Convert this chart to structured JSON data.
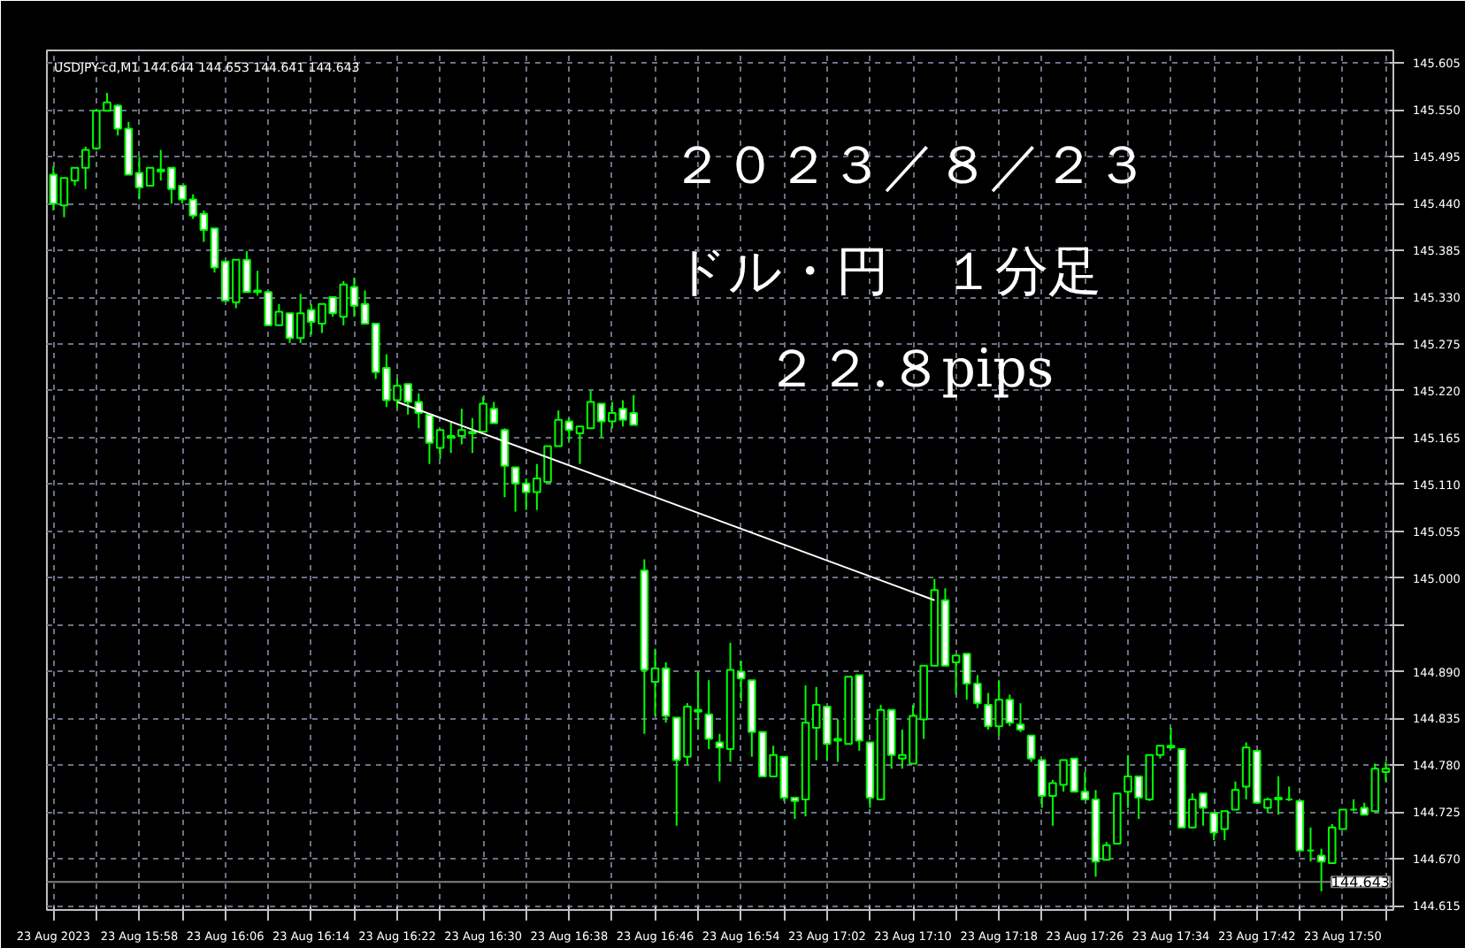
{
  "chart_data": {
    "type": "candlestick",
    "title": "USDJPY-cd,M1  144.644 144.653 144.641 144.643",
    "color": "#00ff00",
    "categories": [
      "23 Aug 2023",
      null,
      null,
      null,
      null,
      null,
      null,
      null,
      "23 Aug 15:58",
      null,
      null,
      null,
      null,
      null,
      null,
      null,
      "23 Aug 16:06",
      null,
      null,
      null,
      null,
      null,
      null,
      null,
      "23 Aug 16:14",
      null,
      null,
      null,
      null,
      null,
      null,
      null,
      "23 Aug 16:22",
      null,
      null,
      null,
      null,
      null,
      null,
      null,
      "23 Aug 16:30",
      null,
      null,
      null,
      null,
      null,
      null,
      null,
      "23 Aug 16:38",
      null,
      null,
      null,
      null,
      null,
      null,
      null,
      "23 Aug 16:46",
      null,
      null,
      null,
      null,
      null,
      null,
      null,
      "23 Aug 16:54",
      null,
      null,
      null,
      null,
      null,
      null,
      null,
      "23 Aug 17:02",
      null,
      null,
      null,
      null,
      null,
      null,
      null,
      "23 Aug 17:10",
      null,
      null,
      null,
      null,
      null,
      null,
      null,
      "23 Aug 17:18",
      null,
      null,
      null,
      null,
      null,
      null,
      null,
      "23 Aug 17:26",
      null,
      null,
      null,
      null,
      null,
      null,
      null,
      "23 Aug 17:34",
      null,
      null,
      null,
      null,
      null,
      null,
      null,
      "23 Aug 17:42",
      null,
      null,
      null,
      null,
      null,
      null,
      null,
      "23 Aug 17:50",
      null,
      null,
      null,
      null
    ],
    "ohlc": [
      [
        145.474,
        145.484,
        145.432,
        145.44
      ],
      [
        145.438,
        145.47,
        145.424,
        145.47
      ],
      [
        145.467,
        145.482,
        145.461,
        145.482
      ],
      [
        145.482,
        145.507,
        145.457,
        145.503
      ],
      [
        145.505,
        145.551,
        145.503,
        145.549
      ],
      [
        145.549,
        145.57,
        145.549,
        145.559
      ],
      [
        145.555,
        145.557,
        145.52,
        145.528
      ],
      [
        145.528,
        145.536,
        145.474,
        145.474
      ],
      [
        145.476,
        145.495,
        145.445,
        145.459
      ],
      [
        145.461,
        145.482,
        145.461,
        145.482
      ],
      [
        145.48,
        145.503,
        145.467,
        145.478
      ],
      [
        145.482,
        145.482,
        145.44,
        145.457
      ],
      [
        145.461,
        145.461,
        145.44,
        145.445
      ],
      [
        145.445,
        145.451,
        145.422,
        145.426
      ],
      [
        145.428,
        145.432,
        145.395,
        145.409
      ],
      [
        145.411,
        145.411,
        145.359,
        145.365
      ],
      [
        145.372,
        145.372,
        145.326,
        145.326
      ],
      [
        145.324,
        145.374,
        145.317,
        145.374
      ],
      [
        145.374,
        145.384,
        145.336,
        145.336
      ],
      [
        145.338,
        145.361,
        145.332,
        145.336
      ],
      [
        145.336,
        145.336,
        145.297,
        145.297
      ],
      [
        145.297,
        145.322,
        145.297,
        145.313
      ],
      [
        145.311,
        145.311,
        145.276,
        145.282
      ],
      [
        145.282,
        145.334,
        145.276,
        145.311
      ],
      [
        145.315,
        145.322,
        145.286,
        145.301
      ],
      [
        145.299,
        145.322,
        145.288,
        145.322
      ],
      [
        145.33,
        145.33,
        145.307,
        145.311
      ],
      [
        145.307,
        145.349,
        145.297,
        145.345
      ],
      [
        145.342,
        145.353,
        145.307,
        145.32
      ],
      [
        145.322,
        145.338,
        145.299,
        145.299
      ],
      [
        145.299,
        145.299,
        145.234,
        145.242
      ],
      [
        145.247,
        145.263,
        145.201,
        145.209
      ],
      [
        145.209,
        145.234,
        145.199,
        145.226
      ],
      [
        145.228,
        145.228,
        145.192,
        145.207
      ],
      [
        145.207,
        145.217,
        145.176,
        145.194
      ],
      [
        145.192,
        145.192,
        145.134,
        145.159
      ],
      [
        145.153,
        145.174,
        145.14,
        145.174
      ],
      [
        145.167,
        145.184,
        145.147,
        145.165
      ],
      [
        145.167,
        145.199,
        145.157,
        145.174
      ],
      [
        145.172,
        145.188,
        145.147,
        145.17
      ],
      [
        145.172,
        145.213,
        145.172,
        145.205
      ],
      [
        145.199,
        145.207,
        145.182,
        145.182
      ],
      [
        145.174,
        145.176,
        145.095,
        145.132
      ],
      [
        145.13,
        145.13,
        145.078,
        145.111
      ],
      [
        145.111,
        145.117,
        145.08,
        145.101
      ],
      [
        145.101,
        145.134,
        145.08,
        145.117
      ],
      [
        145.113,
        145.155,
        145.113,
        145.155
      ],
      [
        145.155,
        145.197,
        145.155,
        145.186
      ],
      [
        145.184,
        145.188,
        145.161,
        145.174
      ],
      [
        145.17,
        145.178,
        145.134,
        145.178
      ],
      [
        145.176,
        145.22,
        145.176,
        145.207
      ],
      [
        145.205,
        145.205,
        145.165,
        145.184
      ],
      [
        145.184,
        145.207,
        145.176,
        145.194
      ],
      [
        145.199,
        145.209,
        145.178,
        145.186
      ],
      [
        145.194,
        145.215,
        145.18,
        145.18
      ],
      [
        145.009,
        145.022,
        144.817,
        144.892
      ],
      [
        144.878,
        144.917,
        144.838,
        144.894
      ],
      [
        144.894,
        144.901,
        144.83,
        144.838
      ],
      [
        144.836,
        144.836,
        144.709,
        144.786
      ],
      [
        144.79,
        144.853,
        144.78,
        144.849
      ],
      [
        144.845,
        144.89,
        144.822,
        144.843
      ],
      [
        144.84,
        144.88,
        144.799,
        144.811
      ],
      [
        144.807,
        144.817,
        144.761,
        144.801
      ],
      [
        144.799,
        144.924,
        144.784,
        144.892
      ],
      [
        144.89,
        144.903,
        144.855,
        144.882
      ],
      [
        144.88,
        144.88,
        144.79,
        144.819
      ],
      [
        144.819,
        144.819,
        144.767,
        144.767
      ],
      [
        144.767,
        144.803,
        144.767,
        144.792
      ],
      [
        144.79,
        144.79,
        144.738,
        144.742
      ],
      [
        144.742,
        144.742,
        144.717,
        144.738
      ],
      [
        144.74,
        144.874,
        144.72,
        144.83
      ],
      [
        144.824,
        144.872,
        144.786,
        144.851
      ],
      [
        144.849,
        144.849,
        144.786,
        144.805
      ],
      [
        144.811,
        144.834,
        144.784,
        144.809
      ],
      [
        144.805,
        144.884,
        144.805,
        144.884
      ],
      [
        144.886,
        144.886,
        144.797,
        144.809
      ],
      [
        144.807,
        144.807,
        144.73,
        144.742
      ],
      [
        144.74,
        144.851,
        144.74,
        144.845
      ],
      [
        144.845,
        144.845,
        144.776,
        144.792
      ],
      [
        144.788,
        144.822,
        144.776,
        144.792
      ],
      [
        144.782,
        144.851,
        144.782,
        144.838
      ],
      [
        144.834,
        144.897,
        144.811,
        144.897
      ],
      [
        144.897,
        144.999,
        144.897,
        144.986
      ],
      [
        144.974,
        144.988,
        144.897,
        144.897
      ],
      [
        144.901,
        144.909,
        144.863,
        144.909
      ],
      [
        144.911,
        144.911,
        144.857,
        144.876
      ],
      [
        144.876,
        144.886,
        144.847,
        144.853
      ],
      [
        144.851,
        144.865,
        144.822,
        144.826
      ],
      [
        144.826,
        144.88,
        144.815,
        144.857
      ],
      [
        144.857,
        144.863,
        144.826,
        144.83
      ],
      [
        144.828,
        144.853,
        144.819,
        144.822
      ],
      [
        144.815,
        144.815,
        144.784,
        144.788
      ],
      [
        144.786,
        144.786,
        144.73,
        144.744
      ],
      [
        144.744,
        144.763,
        144.709,
        144.759
      ],
      [
        144.757,
        144.786,
        144.749,
        144.786
      ],
      [
        144.788,
        144.788,
        144.749,
        144.749
      ],
      [
        144.749,
        144.772,
        144.74,
        144.74
      ],
      [
        144.74,
        144.751,
        144.649,
        144.667
      ],
      [
        144.669,
        144.69,
        144.669,
        144.686
      ],
      [
        144.688,
        144.747,
        144.688,
        144.747
      ],
      [
        144.749,
        144.792,
        144.73,
        144.767
      ],
      [
        144.767,
        144.767,
        144.717,
        144.742
      ],
      [
        144.74,
        144.792,
        144.738,
        144.792
      ],
      [
        144.792,
        144.803,
        144.788,
        144.803
      ],
      [
        144.803,
        144.824,
        144.799,
        144.801
      ],
      [
        144.799,
        144.799,
        144.707,
        144.707
      ],
      [
        144.707,
        144.747,
        144.707,
        144.74
      ],
      [
        144.747,
        144.747,
        144.709,
        144.73
      ],
      [
        144.724,
        144.724,
        144.692,
        144.701
      ],
      [
        144.705,
        144.726,
        144.692,
        144.726
      ],
      [
        144.728,
        144.761,
        144.728,
        144.751
      ],
      [
        144.755,
        144.807,
        144.74,
        144.801
      ],
      [
        144.797,
        144.797,
        144.736,
        144.736
      ],
      [
        144.73,
        144.742,
        144.724,
        144.74
      ],
      [
        144.742,
        144.767,
        144.722,
        144.74
      ],
      [
        144.74,
        144.755,
        144.738,
        144.74
      ],
      [
        144.738,
        144.738,
        144.68,
        144.68
      ],
      [
        144.68,
        144.707,
        144.667,
        144.68
      ],
      [
        144.674,
        144.682,
        144.632,
        144.667
      ],
      [
        144.665,
        144.711,
        144.665,
        144.707
      ],
      [
        144.705,
        144.728,
        144.705,
        144.728
      ],
      [
        144.728,
        144.74,
        144.726,
        144.728
      ],
      [
        144.73,
        144.736,
        144.722,
        144.722
      ],
      [
        144.726,
        144.782,
        144.726,
        144.776
      ],
      [
        144.772,
        144.784,
        144.761,
        144.776
      ]
    ],
    "series": [
      {
        "type": "line",
        "color": "#ffffff",
        "values": [
          null,
          null,
          null,
          null,
          null,
          null,
          null,
          null,
          null,
          null,
          null,
          null,
          null,
          null,
          null,
          null,
          null,
          null,
          null,
          null,
          null,
          null,
          null,
          null,
          null,
          null,
          null,
          null,
          null,
          null,
          null,
          null,
          145.207,
          null,
          null,
          null,
          null,
          null,
          null,
          null,
          null,
          null,
          null,
          null,
          null,
          null,
          null,
          null,
          null,
          null,
          null,
          null,
          null,
          null,
          null,
          null,
          null,
          null,
          null,
          null,
          null,
          null,
          null,
          null,
          null,
          null,
          null,
          null,
          null,
          null,
          null,
          null,
          null,
          null,
          null,
          null,
          null,
          null,
          null,
          null,
          null,
          null,
          144.974,
          null,
          null,
          null,
          null,
          null,
          null,
          null,
          null,
          null,
          null,
          null,
          null,
          null,
          null,
          null,
          null,
          null,
          null,
          null,
          null,
          null,
          null,
          null,
          null,
          null,
          null,
          null,
          null,
          null,
          null,
          null,
          null,
          null,
          null,
          null,
          null,
          null,
          null,
          null,
          null,
          null,
          null
        ]
      }
    ],
    "annotations": [
      "２０２３／８／２３",
      "ドル・円　１分足",
      "２２.８pips"
    ],
    "ref_lines": [
      {
        "axis": "y",
        "value": 144.643,
        "label": "144.643",
        "color": "#808080"
      }
    ],
    "ylim": [
      144.61,
      145.62
    ],
    "yticks": [
      144.615,
      {
        "value": 144.67,
        "label": "144.670"
      },
      144.725,
      {
        "value": 144.78,
        "label": "144.780"
      },
      144.835,
      {
        "value": 144.89,
        "label": "144.890"
      },
      {
        "value": 144.945,
        "label": null
      },
      {
        "value": 145.0,
        "label": "145.000"
      },
      145.055,
      {
        "value": 145.11,
        "label": "145.110"
      },
      145.165,
      {
        "value": 145.22,
        "label": "145.220"
      },
      145.275,
      {
        "value": 145.33,
        "label": "145.330"
      },
      145.385,
      {
        "value": 145.44,
        "label": "145.440"
      },
      145.495,
      {
        "value": 145.55,
        "label": "145.550"
      },
      145.605
    ],
    "grid": true
  }
}
